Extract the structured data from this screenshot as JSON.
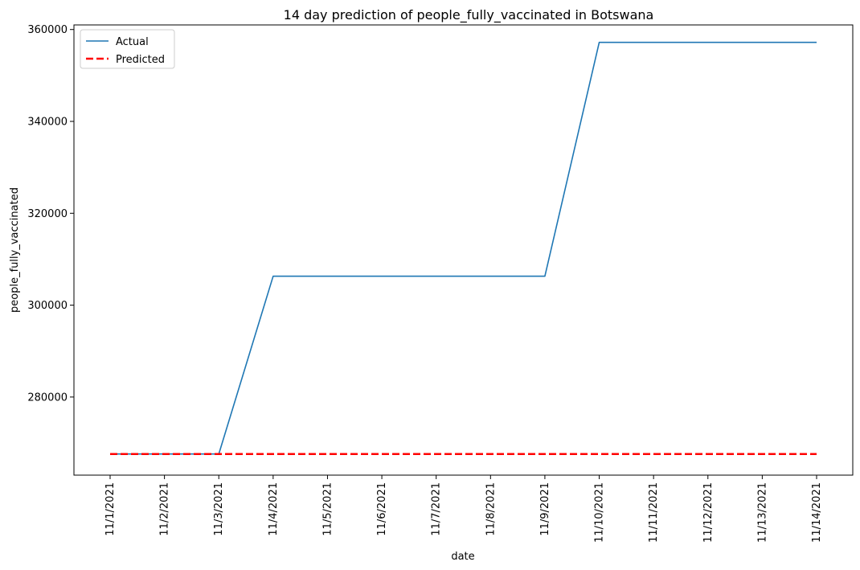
{
  "chart_data": {
    "type": "line",
    "title": "14 day prediction of people_fully_vaccinated in Botswana",
    "xlabel": "date",
    "ylabel": "people_fully_vaccinated",
    "categories": [
      "11/1/2021",
      "11/2/2021",
      "11/3/2021",
      "11/4/2021",
      "11/5/2021",
      "11/6/2021",
      "11/7/2021",
      "11/8/2021",
      "11/9/2021",
      "11/10/2021",
      "11/11/2021",
      "11/12/2021",
      "11/13/2021",
      "11/14/2021"
    ],
    "yticks": [
      280000,
      300000,
      320000,
      340000,
      360000
    ],
    "ylim": [
      263000,
      361000
    ],
    "grid": false,
    "legend_position": "top-left",
    "series": [
      {
        "name": "Actual",
        "color": "#1f77b4",
        "style": "solid",
        "values": [
          267600,
          267600,
          267600,
          306300,
          306300,
          306300,
          306300,
          306300,
          306300,
          357200,
          357200,
          357200,
          357200,
          357200
        ]
      },
      {
        "name": "Predicted",
        "color": "#ff0000",
        "style": "dashed",
        "values": [
          267600,
          267600,
          267600,
          267600,
          267600,
          267600,
          267600,
          267600,
          267600,
          267600,
          267600,
          267600,
          267600,
          267600
        ]
      }
    ]
  }
}
